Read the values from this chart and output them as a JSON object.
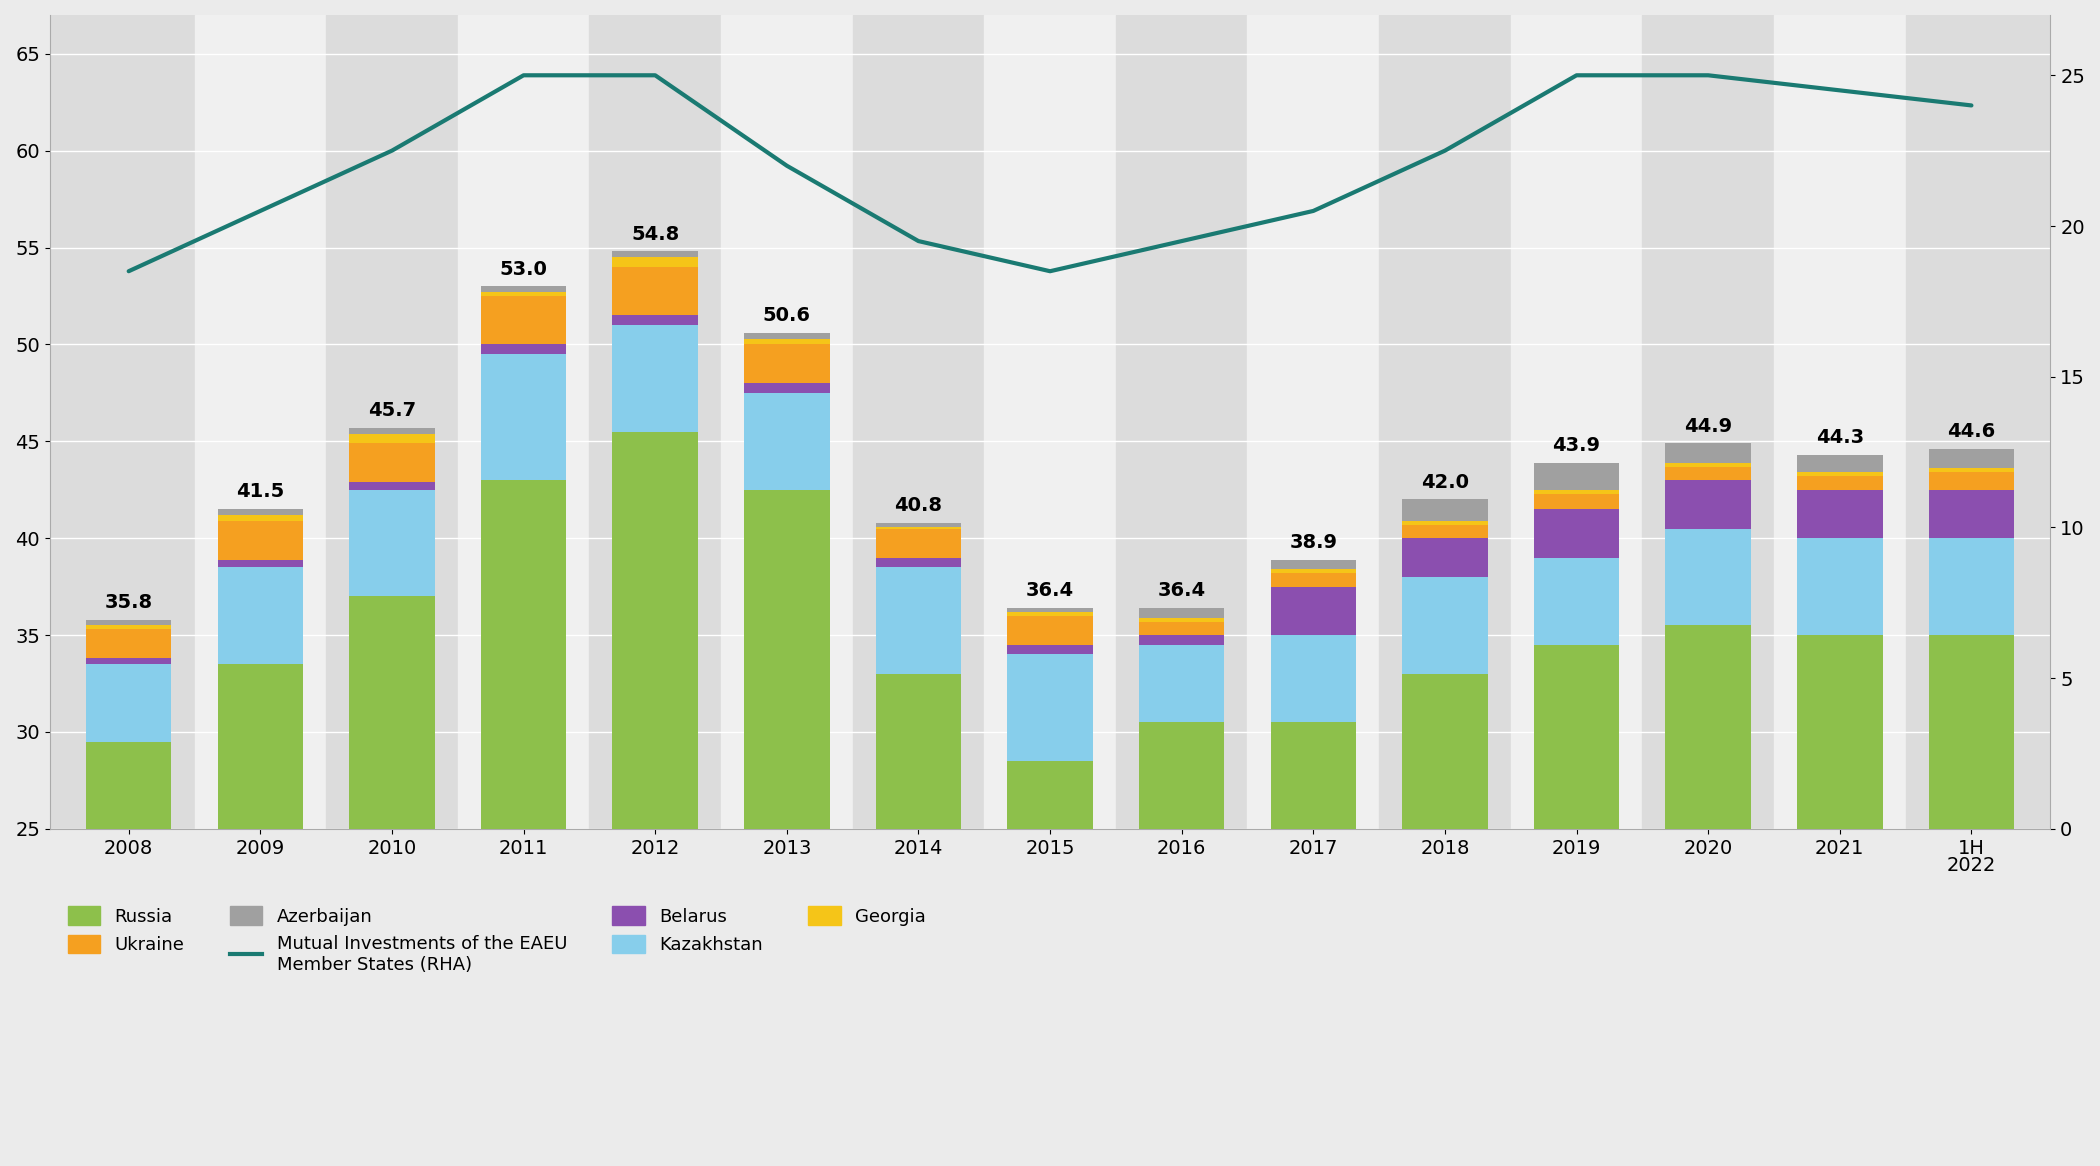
{
  "years": [
    "2008",
    "2009",
    "2010",
    "2011",
    "2012",
    "2013",
    "2014",
    "2015",
    "2016",
    "2017",
    "2018",
    "2019",
    "2020",
    "2021",
    "1H\n2022"
  ],
  "totals": [
    35.8,
    41.5,
    45.7,
    53.0,
    54.8,
    50.6,
    40.8,
    36.4,
    36.4,
    38.9,
    42.0,
    43.9,
    44.9,
    44.3,
    44.6
  ],
  "russia": [
    29.5,
    33.5,
    37.0,
    43.0,
    45.5,
    42.5,
    33.0,
    28.5,
    30.5,
    30.5,
    33.0,
    34.5,
    35.5,
    35.0,
    35.0
  ],
  "kazakhstan": [
    4.0,
    5.0,
    5.5,
    6.5,
    5.5,
    5.0,
    5.5,
    5.5,
    4.0,
    4.5,
    5.0,
    4.5,
    5.0,
    5.0,
    5.0
  ],
  "belarus": [
    0.3,
    0.4,
    0.4,
    0.5,
    0.5,
    0.5,
    0.5,
    0.5,
    0.5,
    2.5,
    2.0,
    2.5,
    2.5,
    2.5,
    2.5
  ],
  "ukraine": [
    1.5,
    2.0,
    2.0,
    2.5,
    2.5,
    2.0,
    1.5,
    1.5,
    0.7,
    0.7,
    0.7,
    0.8,
    0.7,
    0.7,
    0.9
  ],
  "georgia": [
    0.2,
    0.3,
    0.5,
    0.2,
    0.5,
    0.3,
    0.1,
    0.2,
    0.2,
    0.2,
    0.2,
    0.2,
    0.2,
    0.2,
    0.2
  ],
  "azerbaijan": [
    0.3,
    0.3,
    0.3,
    0.3,
    0.3,
    0.3,
    0.2,
    0.2,
    0.5,
    0.5,
    1.1,
    1.4,
    1.0,
    0.9,
    1.0
  ],
  "eaeu_line": [
    18.5,
    20.5,
    22.5,
    25.0,
    25.0,
    22.0,
    19.5,
    18.5,
    19.5,
    20.5,
    22.5,
    25.0,
    25.0,
    24.5,
    24.0
  ],
  "colors": {
    "russia": "#8DC04B",
    "kazakhstan": "#87CEEB",
    "belarus": "#8B4FAF",
    "ukraine": "#F5A020",
    "georgia": "#F5C518",
    "azerbaijan": "#A0A0A0",
    "eaeu_line": "#1A7A72"
  },
  "ylim_left": [
    25,
    67
  ],
  "ylim_right": [
    0,
    27
  ],
  "yticks_left": [
    25,
    30,
    35,
    40,
    45,
    50,
    55,
    60,
    65
  ],
  "yticks_right": [
    0,
    5,
    10,
    15,
    20,
    25
  ],
  "bar_width": 0.65,
  "fig_bg": "#EBEBEB",
  "band_colors": [
    "#DCDCDC",
    "#F0F0F0"
  ]
}
